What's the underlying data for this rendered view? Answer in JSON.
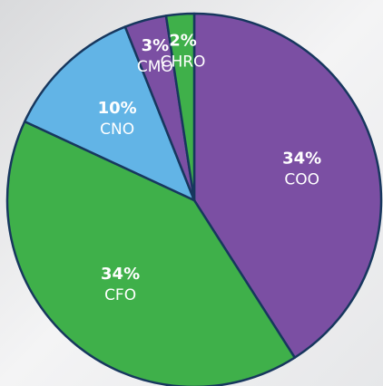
{
  "chart_data": {
    "type": "pie",
    "categories": [
      "COO",
      "CFO",
      "CNO",
      "CMO",
      "CHRO"
    ],
    "values": [
      34,
      34,
      10,
      3,
      2
    ],
    "value_labels": [
      "34%",
      "34%",
      "10%",
      "3%",
      "2%"
    ],
    "colors": [
      "#7b4fa3",
      "#3fb04a",
      "#62b4e6",
      "#7b4fa3",
      "#3fb04a"
    ]
  }
}
